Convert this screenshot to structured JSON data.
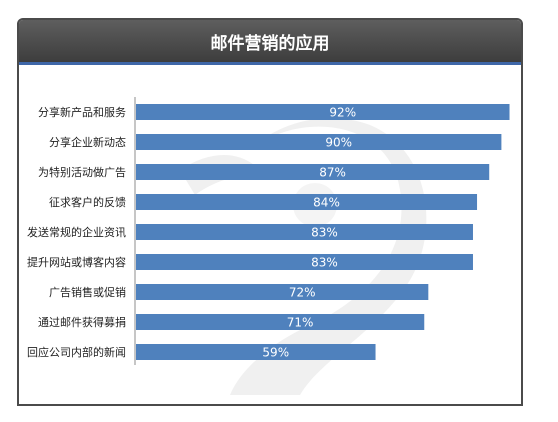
{
  "title": "邮件营销的应用",
  "colors": {
    "bar": "#4f81bd",
    "header_bg": "#4a4a4a",
    "header_rule": "#3f67a8",
    "watermark": "#e4e4e4"
  },
  "chart_data": {
    "type": "bar",
    "orientation": "horizontal",
    "title": "邮件营销的应用",
    "categories": [
      "分享新产品和服务",
      "分享企业新动态",
      "为特别活动做广告",
      "征求客户的反馈",
      "发送常规的企业资讯",
      "提升网站或博客内容",
      "广告销售或促销",
      "通过邮件获得募捐",
      "回应公司内部的新闻"
    ],
    "values": [
      92,
      90,
      87,
      84,
      83,
      83,
      72,
      71,
      59
    ],
    "value_labels": [
      "92%",
      "90%",
      "87%",
      "84%",
      "83%",
      "83%",
      "72%",
      "71%",
      "59%"
    ],
    "unit": "%",
    "xlim": [
      0,
      100
    ],
    "grid": false,
    "legend": "none"
  }
}
